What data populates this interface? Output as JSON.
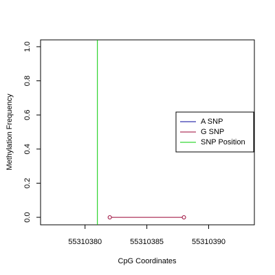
{
  "chart_data": {
    "type": "line",
    "x_label": "CpG Coordinates",
    "y_label": "Methylation Frequency",
    "series": [
      {
        "name": "A SNP",
        "color": "#000099",
        "x": [],
        "values": []
      },
      {
        "name": "G SNP",
        "color": "#990033",
        "x": [
          55310382,
          55310388
        ],
        "values": [
          0,
          0
        ]
      }
    ],
    "vline": {
      "name": "SNP Position",
      "color": "#00cc00",
      "x": 55310381
    },
    "xlim": [
      55310376.4,
      55310393.7
    ],
    "ylim": [
      -0.044,
      1.04
    ],
    "xticks": [
      55310380,
      55310385,
      55310390
    ],
    "yticks": [
      {
        "value": 0,
        "label": "0.0"
      },
      {
        "value": 0.2,
        "label": "0.2"
      },
      {
        "value": 0.4,
        "label": "0.4"
      },
      {
        "value": 0.6,
        "label": "0.6"
      },
      {
        "value": 0.8,
        "label": "0.8"
      },
      {
        "value": 1,
        "label": "1.0"
      }
    ],
    "legend": "right"
  }
}
